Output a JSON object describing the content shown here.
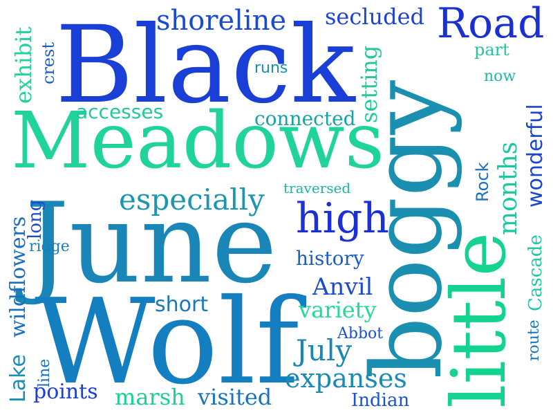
{
  "words": [
    {
      "text": "Black",
      "color": "#1a3fd6"
    },
    {
      "text": "Meadows",
      "color": "#1fd39a"
    },
    {
      "text": "June",
      "color": "#1a86b8"
    },
    {
      "text": "Wolf",
      "color": "#137fc0"
    },
    {
      "text": "boggy",
      "color": "#1a8fb0"
    },
    {
      "text": "little",
      "color": "#14d38f"
    },
    {
      "text": "Road",
      "color": "#1b30d0"
    },
    {
      "text": "shoreline",
      "color": "#1a49d6"
    },
    {
      "text": "secluded",
      "color": "#1c43d2"
    },
    {
      "text": "exhibit",
      "color": "#1fd39a"
    },
    {
      "text": "crest",
      "color": "#1a5fc8"
    },
    {
      "text": "runs",
      "color": "#1690b8"
    },
    {
      "text": "part",
      "color": "#21c79c"
    },
    {
      "text": "route",
      "color": "#1876b8"
    },
    {
      "text": "now",
      "color": "#21b8a8"
    },
    {
      "text": "setting",
      "color": "#22c89a"
    },
    {
      "text": "accesses",
      "color": "#22c89a"
    },
    {
      "text": "connected",
      "color": "#17a3a6"
    },
    {
      "text": "wonderful",
      "color": "#1a47cc"
    },
    {
      "text": "months",
      "color": "#18c9a0"
    },
    {
      "text": "especially",
      "color": "#1b96b0"
    },
    {
      "text": "traversed",
      "color": "#1ab7a3"
    },
    {
      "text": "Rock",
      "color": "#1a6fbf"
    },
    {
      "text": "high",
      "color": "#1c2fd5"
    },
    {
      "text": "long",
      "color": "#1e4bcc"
    },
    {
      "text": "wildflowers",
      "color": "#1a6fbf"
    },
    {
      "text": "ridge",
      "color": "#1a7fb8"
    },
    {
      "text": "history",
      "color": "#1a5fc5"
    },
    {
      "text": "Cascade",
      "color": "#1bc9a2"
    },
    {
      "text": "Anvil",
      "color": "#1a4ad2"
    },
    {
      "text": "short",
      "color": "#1a78bb"
    },
    {
      "text": "variety",
      "color": "#20dd94"
    },
    {
      "text": "Abbot",
      "color": "#1c52cc"
    },
    {
      "text": "July",
      "color": "#1a86b4"
    },
    {
      "text": "Lake",
      "color": "#1a8db4"
    },
    {
      "text": "line",
      "color": "#1a6fbf"
    },
    {
      "text": "expanses",
      "color": "#1a8bb3"
    },
    {
      "text": "points",
      "color": "#1a3fd2"
    },
    {
      "text": "marsh",
      "color": "#1ccf98"
    },
    {
      "text": "visited",
      "color": "#1a74bb"
    },
    {
      "text": "Indian",
      "color": "#1a55c8"
    }
  ]
}
